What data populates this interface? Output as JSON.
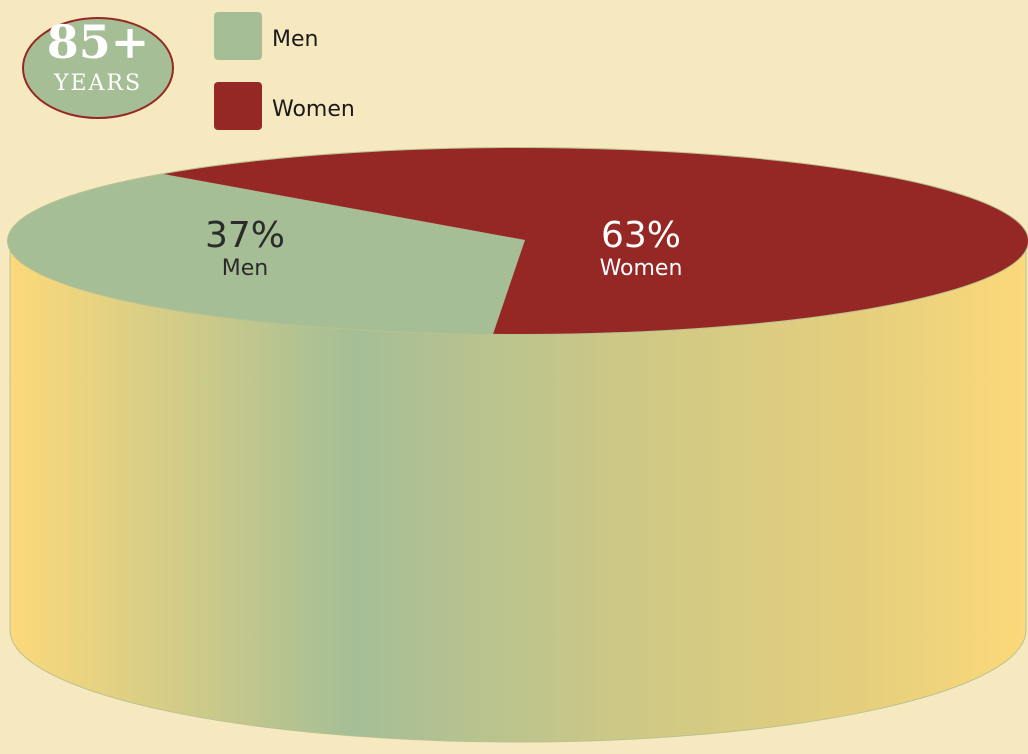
{
  "chart_data": {
    "type": "pie",
    "title": "85+",
    "subtitle": "YEARS",
    "categories": [
      "Men",
      "Women"
    ],
    "values": [
      37,
      63
    ],
    "value_labels": [
      "37%",
      "63%"
    ],
    "colors": [
      "#a5be96",
      "#952825"
    ],
    "legend": "top-left"
  }
}
